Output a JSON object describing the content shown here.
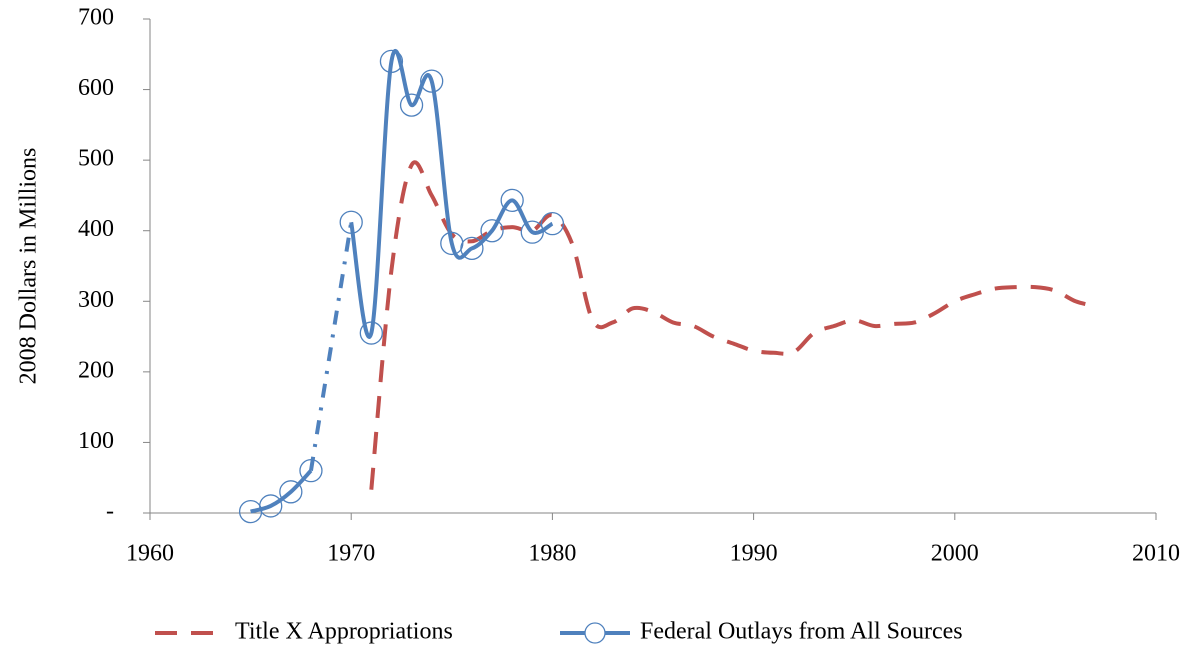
{
  "chart_data": {
    "type": "line",
    "y_label": "2008 Dollars in Millions",
    "xlim": [
      1960,
      2010
    ],
    "xticks": [
      1960,
      1970,
      1980,
      1990,
      2000,
      2010
    ],
    "ylim": [
      0,
      700
    ],
    "yticks": [
      {
        "value": 0,
        "label": "-"
      },
      100,
      200,
      300,
      400,
      500,
      600,
      700
    ],
    "legend": "bottom",
    "series": [
      {
        "name": "Title X Appropriations",
        "color": "#c0504d",
        "style": "dashed",
        "x": [
          1971,
          1972,
          1973,
          1974,
          1975,
          1976,
          1977,
          1978,
          1979,
          1980,
          1981,
          1982,
          1983,
          1984,
          1985,
          1986,
          1987,
          1988,
          1989,
          1990,
          1991,
          1992,
          1993,
          1994,
          1995,
          1996,
          1997,
          1998,
          1999,
          2000,
          2001,
          2002,
          2003,
          2004,
          2005,
          2006,
          2007
        ],
        "values": [
          33,
          344,
          493,
          450,
          395,
          385,
          400,
          405,
          400,
          422,
          380,
          273,
          270,
          290,
          285,
          270,
          265,
          250,
          240,
          230,
          227,
          228,
          255,
          265,
          273,
          265,
          268,
          270,
          283,
          300,
          310,
          318,
          320,
          320,
          315,
          300,
          293
        ]
      },
      {
        "name": "Federal Outlays from All Sources",
        "color": "#4f81bd",
        "style": "solid-markers",
        "x": [
          1965,
          1966,
          1967,
          1968,
          1969,
          1970,
          1971,
          1972,
          1973,
          1974,
          1975,
          1976,
          1977,
          1978,
          1979,
          1980
        ],
        "values": [
          2,
          10,
          30,
          60,
          null,
          412,
          255,
          640,
          578,
          612,
          382,
          375,
          400,
          443,
          398,
          410
        ]
      }
    ]
  }
}
